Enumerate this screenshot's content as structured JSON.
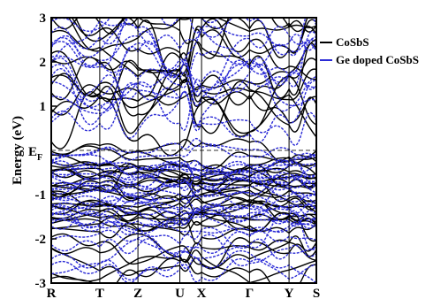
{
  "chart_data": {
    "type": "line",
    "title": "",
    "xlabel": "",
    "ylabel": "Energy (eV)",
    "ylim": [
      -3,
      3
    ],
    "yticks": [
      -3,
      -2,
      -1,
      1,
      2,
      3
    ],
    "fermi_label": {
      "main": "E",
      "sub": "F"
    },
    "fermi_level": 0,
    "x": {
      "high_symmetry_points": [
        "R",
        "T",
        "Z",
        "U",
        "X",
        "Γ",
        "Y",
        "S"
      ],
      "positions": [
        0,
        0.183,
        0.327,
        0.485,
        0.567,
        0.748,
        0.897,
        1.0
      ]
    },
    "legend": {
      "placement": "top-right outside"
    },
    "series": [
      {
        "name": "CoSbS",
        "color": "#000000"
      },
      {
        "name": "Ge doped CoSbS",
        "color": "#2b2bd6"
      }
    ],
    "band_regions": {
      "conduction_min_approx": 0.05,
      "valence_max_approx": 0.1,
      "dense_valence_region": [
        -1.6,
        -0.6
      ]
    }
  }
}
